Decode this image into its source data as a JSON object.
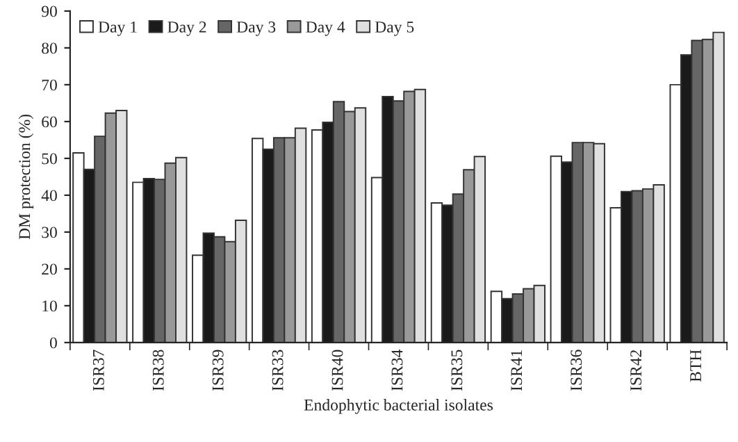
{
  "chart_data": {
    "type": "bar",
    "xlabel": "Endophytic bacterial isolates",
    "ylabel": "DM protection (%)",
    "categories": [
      "ISR37",
      "ISR38",
      "ISR39",
      "ISR33",
      "ISR40",
      "ISR34",
      "ISR35",
      "ISR41",
      "ISR36",
      "ISR42",
      "BTH"
    ],
    "series": [
      {
        "name": "Day 1",
        "color": "#ffffff",
        "values": [
          51.5,
          43.5,
          23.7,
          55.4,
          57.7,
          44.8,
          37.9,
          13.9,
          50.6,
          36.6,
          70
        ]
      },
      {
        "name": "Day 2",
        "color": "#1a1a1a",
        "values": [
          47,
          44.5,
          29.7,
          52.5,
          59.8,
          66.8,
          37.3,
          11.9,
          49,
          41,
          78.1
        ]
      },
      {
        "name": "Day 3",
        "color": "#666666",
        "values": [
          56,
          44.3,
          28.7,
          55.6,
          65.4,
          65.6,
          40.3,
          13.2,
          54.3,
          41.2,
          82
        ]
      },
      {
        "name": "Day 4",
        "color": "#999999",
        "values": [
          62.3,
          48.7,
          27.4,
          55.6,
          62.7,
          68.2,
          46.9,
          14.6,
          54.3,
          41.7,
          82.3
        ]
      },
      {
        "name": "Day 5",
        "color": "#e0e0e0",
        "values": [
          63,
          50.2,
          33.2,
          58.2,
          63.7,
          68.7,
          50.5,
          15.5,
          54,
          42.8,
          84.2
        ]
      }
    ],
    "ylim": [
      0,
      90
    ],
    "yticks": [
      0,
      10,
      20,
      30,
      40,
      50,
      60,
      70,
      80,
      90
    ],
    "grid": false,
    "legend": "top left"
  }
}
